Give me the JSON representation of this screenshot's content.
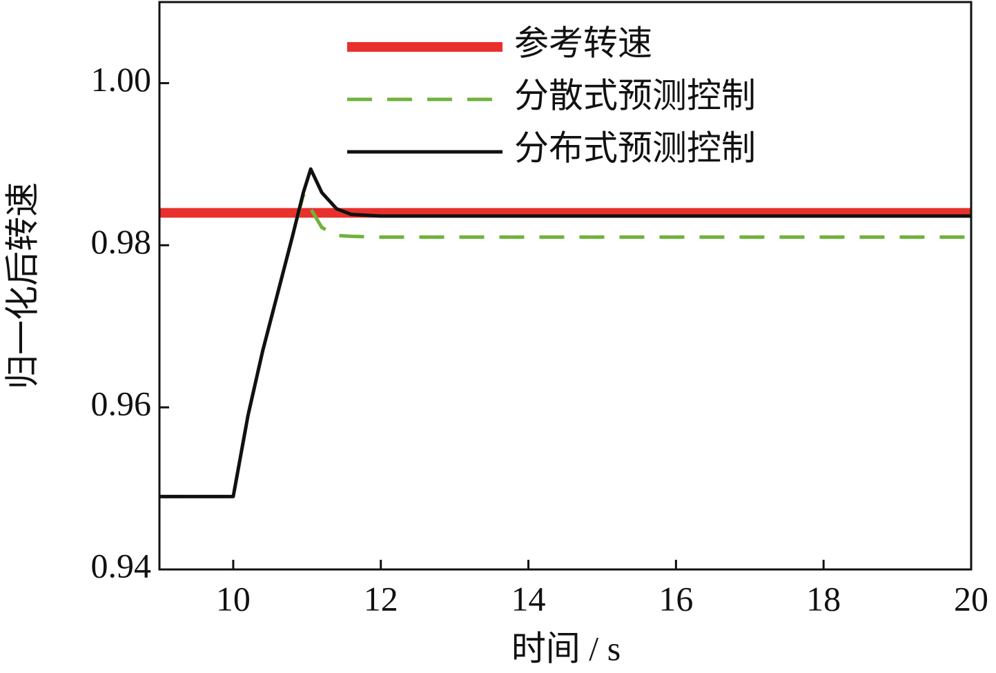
{
  "chart_data": {
    "type": "line",
    "xlabel": "时间 / s",
    "ylabel": "归一化后转速",
    "x": [
      9,
      10,
      10.2,
      10.4,
      10.6,
      10.8,
      10.95,
      11.05,
      11.2,
      11.4,
      11.6,
      12,
      14,
      16,
      18,
      20
    ],
    "series": [
      {
        "name": "参考转速",
        "color": "#e8302c",
        "linestyle": "solid",
        "linewidth": 14,
        "values": [
          0.984,
          0.984,
          0.984,
          0.984,
          0.984,
          0.984,
          0.984,
          0.984,
          0.984,
          0.984,
          0.984,
          0.984,
          0.984,
          0.984,
          0.984,
          0.984
        ]
      },
      {
        "name": "分散式预测控制",
        "color": "#70b33b",
        "linestyle": "dashed",
        "linewidth": 5,
        "values": [
          0.949,
          0.949,
          0.959,
          0.967,
          0.974,
          0.981,
          0.9862,
          0.9845,
          0.9822,
          0.9812,
          0.9811,
          0.981,
          0.981,
          0.981,
          0.981,
          0.981
        ]
      },
      {
        "name": "分布式预测控制",
        "color": "#111111",
        "linestyle": "solid",
        "linewidth": 5,
        "values": [
          0.949,
          0.949,
          0.959,
          0.967,
          0.974,
          0.981,
          0.9865,
          0.9894,
          0.9865,
          0.9845,
          0.9838,
          0.9836,
          0.9836,
          0.9836,
          0.9836,
          0.9836
        ]
      }
    ],
    "xlim": [
      9,
      20
    ],
    "ylim": [
      0.94,
      1.01
    ],
    "xticks": [
      10,
      12,
      14,
      16,
      18,
      20
    ],
    "yticks": [
      0.94,
      0.96,
      0.98,
      {
        "value": 1,
        "label": "1.00"
      }
    ],
    "legend": "top"
  }
}
